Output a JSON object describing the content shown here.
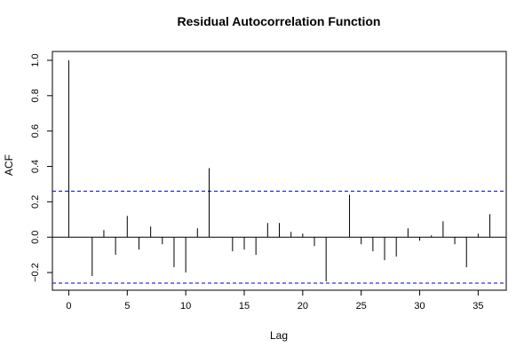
{
  "chart_data": {
    "type": "bar",
    "title": "Residual Autocorrelation Function",
    "xlabel": "Lag",
    "ylabel": "ACF",
    "xlim": [
      -1.4,
      37.4
    ],
    "ylim": [
      -0.3,
      1.05
    ],
    "x_ticks": [
      "0",
      "5",
      "10",
      "15",
      "20",
      "25",
      "30",
      "35"
    ],
    "y_ticks": [
      "−0.2",
      "0.0",
      "0.2",
      "0.4",
      "0.6",
      "0.8",
      "1.0"
    ],
    "confidence_bound": 0.26,
    "colors": {
      "spike": "#000000",
      "bound": "#0000cc",
      "zero_line": "#000000"
    },
    "lags": [
      0,
      1,
      2,
      3,
      4,
      5,
      6,
      7,
      8,
      9,
      10,
      11,
      12,
      13,
      14,
      15,
      16,
      17,
      18,
      19,
      20,
      21,
      22,
      23,
      24,
      25,
      26,
      27,
      28,
      29,
      30,
      31,
      32,
      33,
      34,
      35,
      36
    ],
    "values": [
      1.0,
      0.0,
      -0.22,
      0.04,
      -0.1,
      0.12,
      -0.07,
      0.06,
      -0.04,
      -0.17,
      -0.2,
      0.05,
      0.39,
      0.0,
      -0.08,
      -0.07,
      -0.1,
      0.08,
      0.08,
      0.03,
      0.02,
      -0.05,
      -0.25,
      0.0,
      0.24,
      -0.04,
      -0.08,
      -0.13,
      -0.11,
      0.05,
      -0.02,
      0.01,
      0.09,
      -0.04,
      -0.17,
      0.02,
      0.13
    ]
  }
}
